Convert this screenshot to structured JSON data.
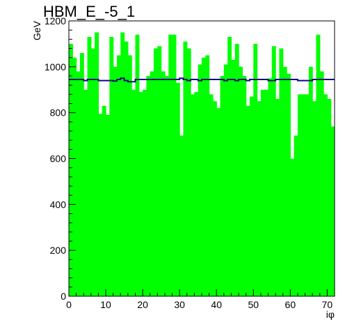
{
  "chart_data": {
    "type": "bar",
    "title": "HBM_E_-5_1",
    "xlabel": "iφ",
    "ylabel": "GeV",
    "xlim": [
      0,
      72
    ],
    "ylim": [
      0,
      1200
    ],
    "grid": false,
    "x_ticks": [
      0,
      10,
      20,
      30,
      40,
      50,
      60,
      70
    ],
    "y_ticks": [
      0,
      200,
      400,
      600,
      800,
      1000,
      1200
    ],
    "series": [
      {
        "style": "filled-histogram",
        "color": "#00ff00",
        "bin_width": 1,
        "values": [
          1100,
          1040,
          980,
          1060,
          900,
          1130,
          1080,
          1150,
          795,
          830,
          790,
          1130,
          1000,
          1050,
          1150,
          1110,
          1050,
          900,
          1140,
          890,
          900,
          960,
          980,
          1080,
          1090,
          980,
          960,
          1140,
          1140,
          930,
          700,
          1110,
          1080,
          880,
          890,
          1010,
          1040,
          1050,
          880,
          850,
          820,
          960,
          1010,
          1130,
          1030,
          1100,
          1000,
          960,
          830,
          870,
          1100,
          850,
          900,
          900,
          950,
          1090,
          860,
          1080,
          1000,
          970,
          600,
          700,
          880,
          880,
          880,
          1000,
          850,
          1140,
          980,
          880,
          860,
          740
        ]
      },
      {
        "style": "step-line",
        "color": "#0b0b7d",
        "values": [
          945,
          945,
          945,
          945,
          940,
          945,
          945,
          945,
          940,
          940,
          940,
          940,
          938,
          945,
          950,
          940,
          935,
          935,
          945,
          945,
          945,
          945,
          945,
          945,
          945,
          945,
          945,
          945,
          945,
          945,
          950,
          945,
          940,
          945,
          945,
          940,
          945,
          945,
          945,
          945,
          945,
          945,
          940,
          945,
          945,
          940,
          945,
          945,
          940,
          945,
          945,
          945,
          945,
          945,
          940,
          940,
          945,
          945,
          945,
          945,
          945,
          945,
          940,
          940,
          940,
          940,
          945,
          945,
          945,
          945,
          945,
          945
        ]
      }
    ]
  }
}
